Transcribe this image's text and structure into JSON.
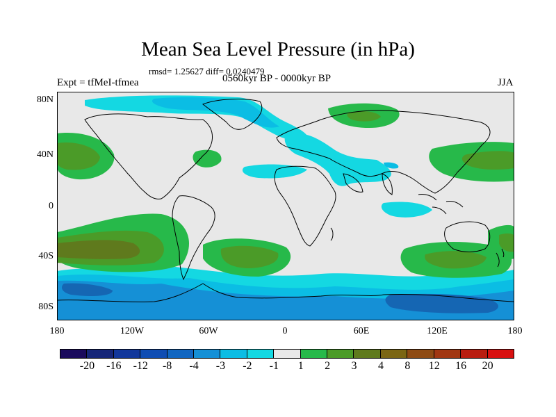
{
  "header": {
    "title": "Mean Sea Level Pressure (in hPa)",
    "stats": "rmsd= 1.25627 diff= 0.0240479",
    "experiment": "Expt = tfMeI-tfmea",
    "period": "0560kyr BP - 0000kyr BP",
    "season": "JJA"
  },
  "map": {
    "lat_labels": [
      "80N",
      "40N",
      "0",
      "40S",
      "80S"
    ],
    "lon_labels": [
      "180",
      "120W",
      "60W",
      "0",
      "60E",
      "120E",
      "180"
    ],
    "colors": {
      "background": "#e8e8e8",
      "pos_1_2": "#27b94a",
      "pos_2_3": "#4b9b28",
      "pos_3_4": "#5f7a1d",
      "neg_1_2": "#14d8e2",
      "neg_2_3": "#0bbde4",
      "neg_3_4": "#1590d6",
      "neg_4_8": "#1566b3",
      "coast": "#000000"
    }
  },
  "colorbar": {
    "colors": [
      "#1a0a5c",
      "#162678",
      "#12379b",
      "#0f4db3",
      "#1166c1",
      "#1590d6",
      "#0bbde4",
      "#14d8e2",
      "#e8e8e8",
      "#27b94a",
      "#4b9b28",
      "#5f7a1d",
      "#7b6614",
      "#8e4b14",
      "#a13712",
      "#b91d10",
      "#d81010"
    ],
    "labels": [
      "-20",
      "-16",
      "-12",
      "-8",
      "-4",
      "-3",
      "-2",
      "-1",
      "1",
      "2",
      "3",
      "4",
      "8",
      "12",
      "16",
      "20"
    ]
  }
}
